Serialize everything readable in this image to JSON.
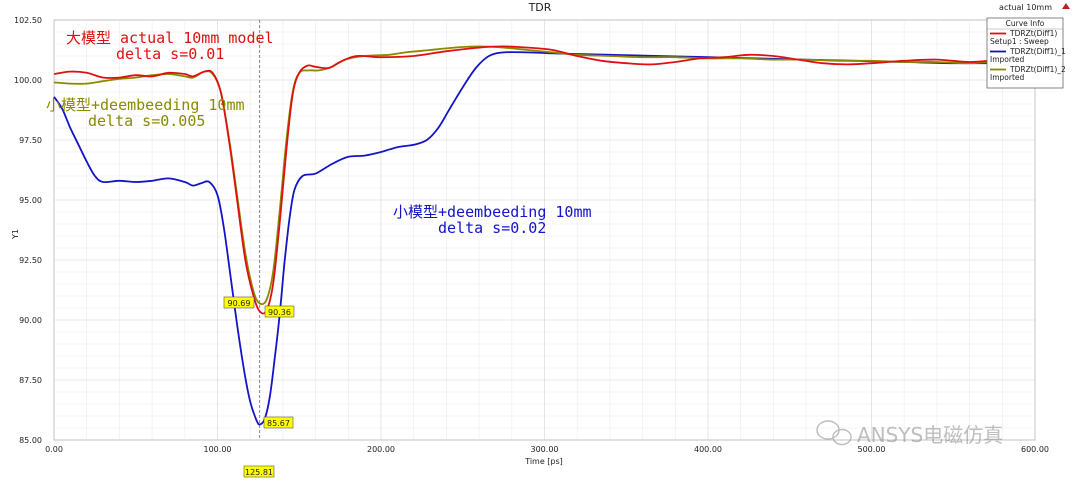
{
  "window": {
    "title": "TDR",
    "corner_label": "actual 10mm",
    "corner_icon": "caret-up-icon"
  },
  "legend": {
    "title": "Curve Info",
    "entries": [
      {
        "name": "TDRZt(Diff1)",
        "sub": "Setup1 : Sweep",
        "color": "#e01010"
      },
      {
        "name": "TDRZt(Diff1)_1",
        "sub": "Imported",
        "color": "#1414c8"
      },
      {
        "name": "TDRZt(Diff1)_2",
        "sub": "Imported",
        "color": "#8a8a00"
      }
    ]
  },
  "annotations": {
    "red_line1": "大模型 actual 10mm model",
    "red_line2": "delta s=0.01",
    "olive_line1": "小模型+deembeeding 10mm",
    "olive_line2": "delta s=0.005",
    "blue_line1": "小模型+deembeeding 10mm",
    "blue_line2": "delta s=0.02"
  },
  "markers": {
    "olive_min": "90.69",
    "red_min": "90.36",
    "blue_min": "85.67",
    "cursor_x": "125.81"
  },
  "watermark": "ANSYS电磁仿真",
  "chart_data": {
    "type": "line",
    "title": "TDR",
    "xlabel": "Time [ps]",
    "ylabel": "Y1",
    "xlim": [
      0,
      600
    ],
    "ylim": [
      85,
      102.5
    ],
    "x_ticks": [
      "0.00",
      "100.00",
      "200.00",
      "300.00",
      "400.00",
      "500.00",
      "600.00"
    ],
    "y_ticks": [
      "85.00",
      "87.50",
      "90.00",
      "92.50",
      "95.00",
      "97.50",
      "100.00",
      "102.50"
    ],
    "grid": true,
    "cursor_x": 125.81,
    "series": [
      {
        "name": "TDRZt(Diff1)",
        "color": "#e01010",
        "points": [
          [
            0,
            100.25
          ],
          [
            10,
            100.35
          ],
          [
            20,
            100.3
          ],
          [
            30,
            100.1
          ],
          [
            40,
            100.1
          ],
          [
            50,
            100.2
          ],
          [
            60,
            100.15
          ],
          [
            70,
            100.3
          ],
          [
            80,
            100.25
          ],
          [
            85,
            100.15
          ],
          [
            92,
            100.35
          ],
          [
            97,
            100.3
          ],
          [
            102,
            99.5
          ],
          [
            107,
            97.5
          ],
          [
            112,
            95.0
          ],
          [
            117,
            92.5
          ],
          [
            122,
            91.0
          ],
          [
            125.8,
            90.36
          ],
          [
            130,
            90.4
          ],
          [
            134,
            91.5
          ],
          [
            138,
            94.0
          ],
          [
            142,
            97.0
          ],
          [
            146,
            99.4
          ],
          [
            150,
            100.3
          ],
          [
            155,
            100.6
          ],
          [
            160,
            100.55
          ],
          [
            168,
            100.5
          ],
          [
            175,
            100.75
          ],
          [
            185,
            101.0
          ],
          [
            200,
            100.95
          ],
          [
            220,
            101.0
          ],
          [
            240,
            101.2
          ],
          [
            260,
            101.35
          ],
          [
            275,
            101.4
          ],
          [
            290,
            101.35
          ],
          [
            305,
            101.25
          ],
          [
            320,
            101.0
          ],
          [
            335,
            100.8
          ],
          [
            350,
            100.7
          ],
          [
            365,
            100.65
          ],
          [
            380,
            100.75
          ],
          [
            395,
            100.9
          ],
          [
            410,
            100.95
          ],
          [
            425,
            101.05
          ],
          [
            440,
            101.0
          ],
          [
            455,
            100.85
          ],
          [
            470,
            100.7
          ],
          [
            485,
            100.65
          ],
          [
            500,
            100.7
          ],
          [
            520,
            100.8
          ],
          [
            540,
            100.85
          ],
          [
            560,
            100.75
          ],
          [
            580,
            100.85
          ],
          [
            600,
            100.9
          ]
        ]
      },
      {
        "name": "TDRZt(Diff1)_1",
        "color": "#1414c8",
        "points": [
          [
            0,
            99.3
          ],
          [
            5,
            98.8
          ],
          [
            10,
            98.0
          ],
          [
            15,
            97.3
          ],
          [
            20,
            96.6
          ],
          [
            25,
            96.0
          ],
          [
            30,
            95.75
          ],
          [
            40,
            95.8
          ],
          [
            50,
            95.75
          ],
          [
            60,
            95.8
          ],
          [
            70,
            95.9
          ],
          [
            80,
            95.75
          ],
          [
            85,
            95.6
          ],
          [
            90,
            95.7
          ],
          [
            95,
            95.75
          ],
          [
            100,
            95.2
          ],
          [
            104,
            93.8
          ],
          [
            108,
            91.8
          ],
          [
            112,
            89.8
          ],
          [
            116,
            88.0
          ],
          [
            120,
            86.6
          ],
          [
            124,
            85.8
          ],
          [
            126,
            85.65
          ],
          [
            129,
            85.9
          ],
          [
            132,
            86.8
          ],
          [
            135,
            88.4
          ],
          [
            138,
            90.2
          ],
          [
            141,
            92.4
          ],
          [
            144,
            94.2
          ],
          [
            147,
            95.4
          ],
          [
            152,
            96.0
          ],
          [
            160,
            96.1
          ],
          [
            170,
            96.5
          ],
          [
            180,
            96.8
          ],
          [
            190,
            96.85
          ],
          [
            200,
            97.0
          ],
          [
            210,
            97.2
          ],
          [
            220,
            97.3
          ],
          [
            228,
            97.5
          ],
          [
            235,
            98.0
          ],
          [
            242,
            98.8
          ],
          [
            250,
            99.7
          ],
          [
            258,
            100.5
          ],
          [
            266,
            101.0
          ],
          [
            275,
            101.15
          ],
          [
            290,
            101.15
          ],
          [
            310,
            101.1
          ],
          [
            340,
            101.05
          ],
          [
            370,
            101.0
          ],
          [
            400,
            100.95
          ],
          [
            430,
            100.9
          ],
          [
            460,
            100.85
          ],
          [
            490,
            100.8
          ],
          [
            520,
            100.75
          ],
          [
            550,
            100.7
          ],
          [
            580,
            100.7
          ],
          [
            600,
            100.7
          ]
        ]
      },
      {
        "name": "TDRZt(Diff1)_2",
        "color": "#8a8a00",
        "points": [
          [
            0,
            99.9
          ],
          [
            10,
            99.85
          ],
          [
            20,
            99.85
          ],
          [
            30,
            99.95
          ],
          [
            40,
            100.05
          ],
          [
            50,
            100.1
          ],
          [
            60,
            100.2
          ],
          [
            70,
            100.25
          ],
          [
            80,
            100.15
          ],
          [
            85,
            100.1
          ],
          [
            92,
            100.35
          ],
          [
            97,
            100.25
          ],
          [
            102,
            99.5
          ],
          [
            107,
            97.6
          ],
          [
            112,
            95.2
          ],
          [
            117,
            92.8
          ],
          [
            122,
            91.2
          ],
          [
            125.8,
            90.69
          ],
          [
            130,
            90.85
          ],
          [
            134,
            92.0
          ],
          [
            138,
            94.5
          ],
          [
            142,
            97.4
          ],
          [
            146,
            99.5
          ],
          [
            150,
            100.3
          ],
          [
            156,
            100.4
          ],
          [
            162,
            100.4
          ],
          [
            170,
            100.55
          ],
          [
            178,
            100.85
          ],
          [
            190,
            101.0
          ],
          [
            205,
            101.05
          ],
          [
            215,
            101.15
          ],
          [
            230,
            101.25
          ],
          [
            245,
            101.35
          ],
          [
            260,
            101.4
          ],
          [
            275,
            101.35
          ],
          [
            290,
            101.25
          ],
          [
            305,
            101.15
          ],
          [
            320,
            101.05
          ],
          [
            340,
            101.0
          ],
          [
            360,
            100.95
          ],
          [
            380,
            100.95
          ],
          [
            400,
            100.9
          ],
          [
            420,
            100.9
          ],
          [
            440,
            100.85
          ],
          [
            460,
            100.85
          ],
          [
            480,
            100.8
          ],
          [
            500,
            100.8
          ],
          [
            520,
            100.75
          ],
          [
            540,
            100.75
          ],
          [
            560,
            100.7
          ],
          [
            580,
            100.8
          ],
          [
            600,
            100.9
          ]
        ]
      }
    ]
  }
}
